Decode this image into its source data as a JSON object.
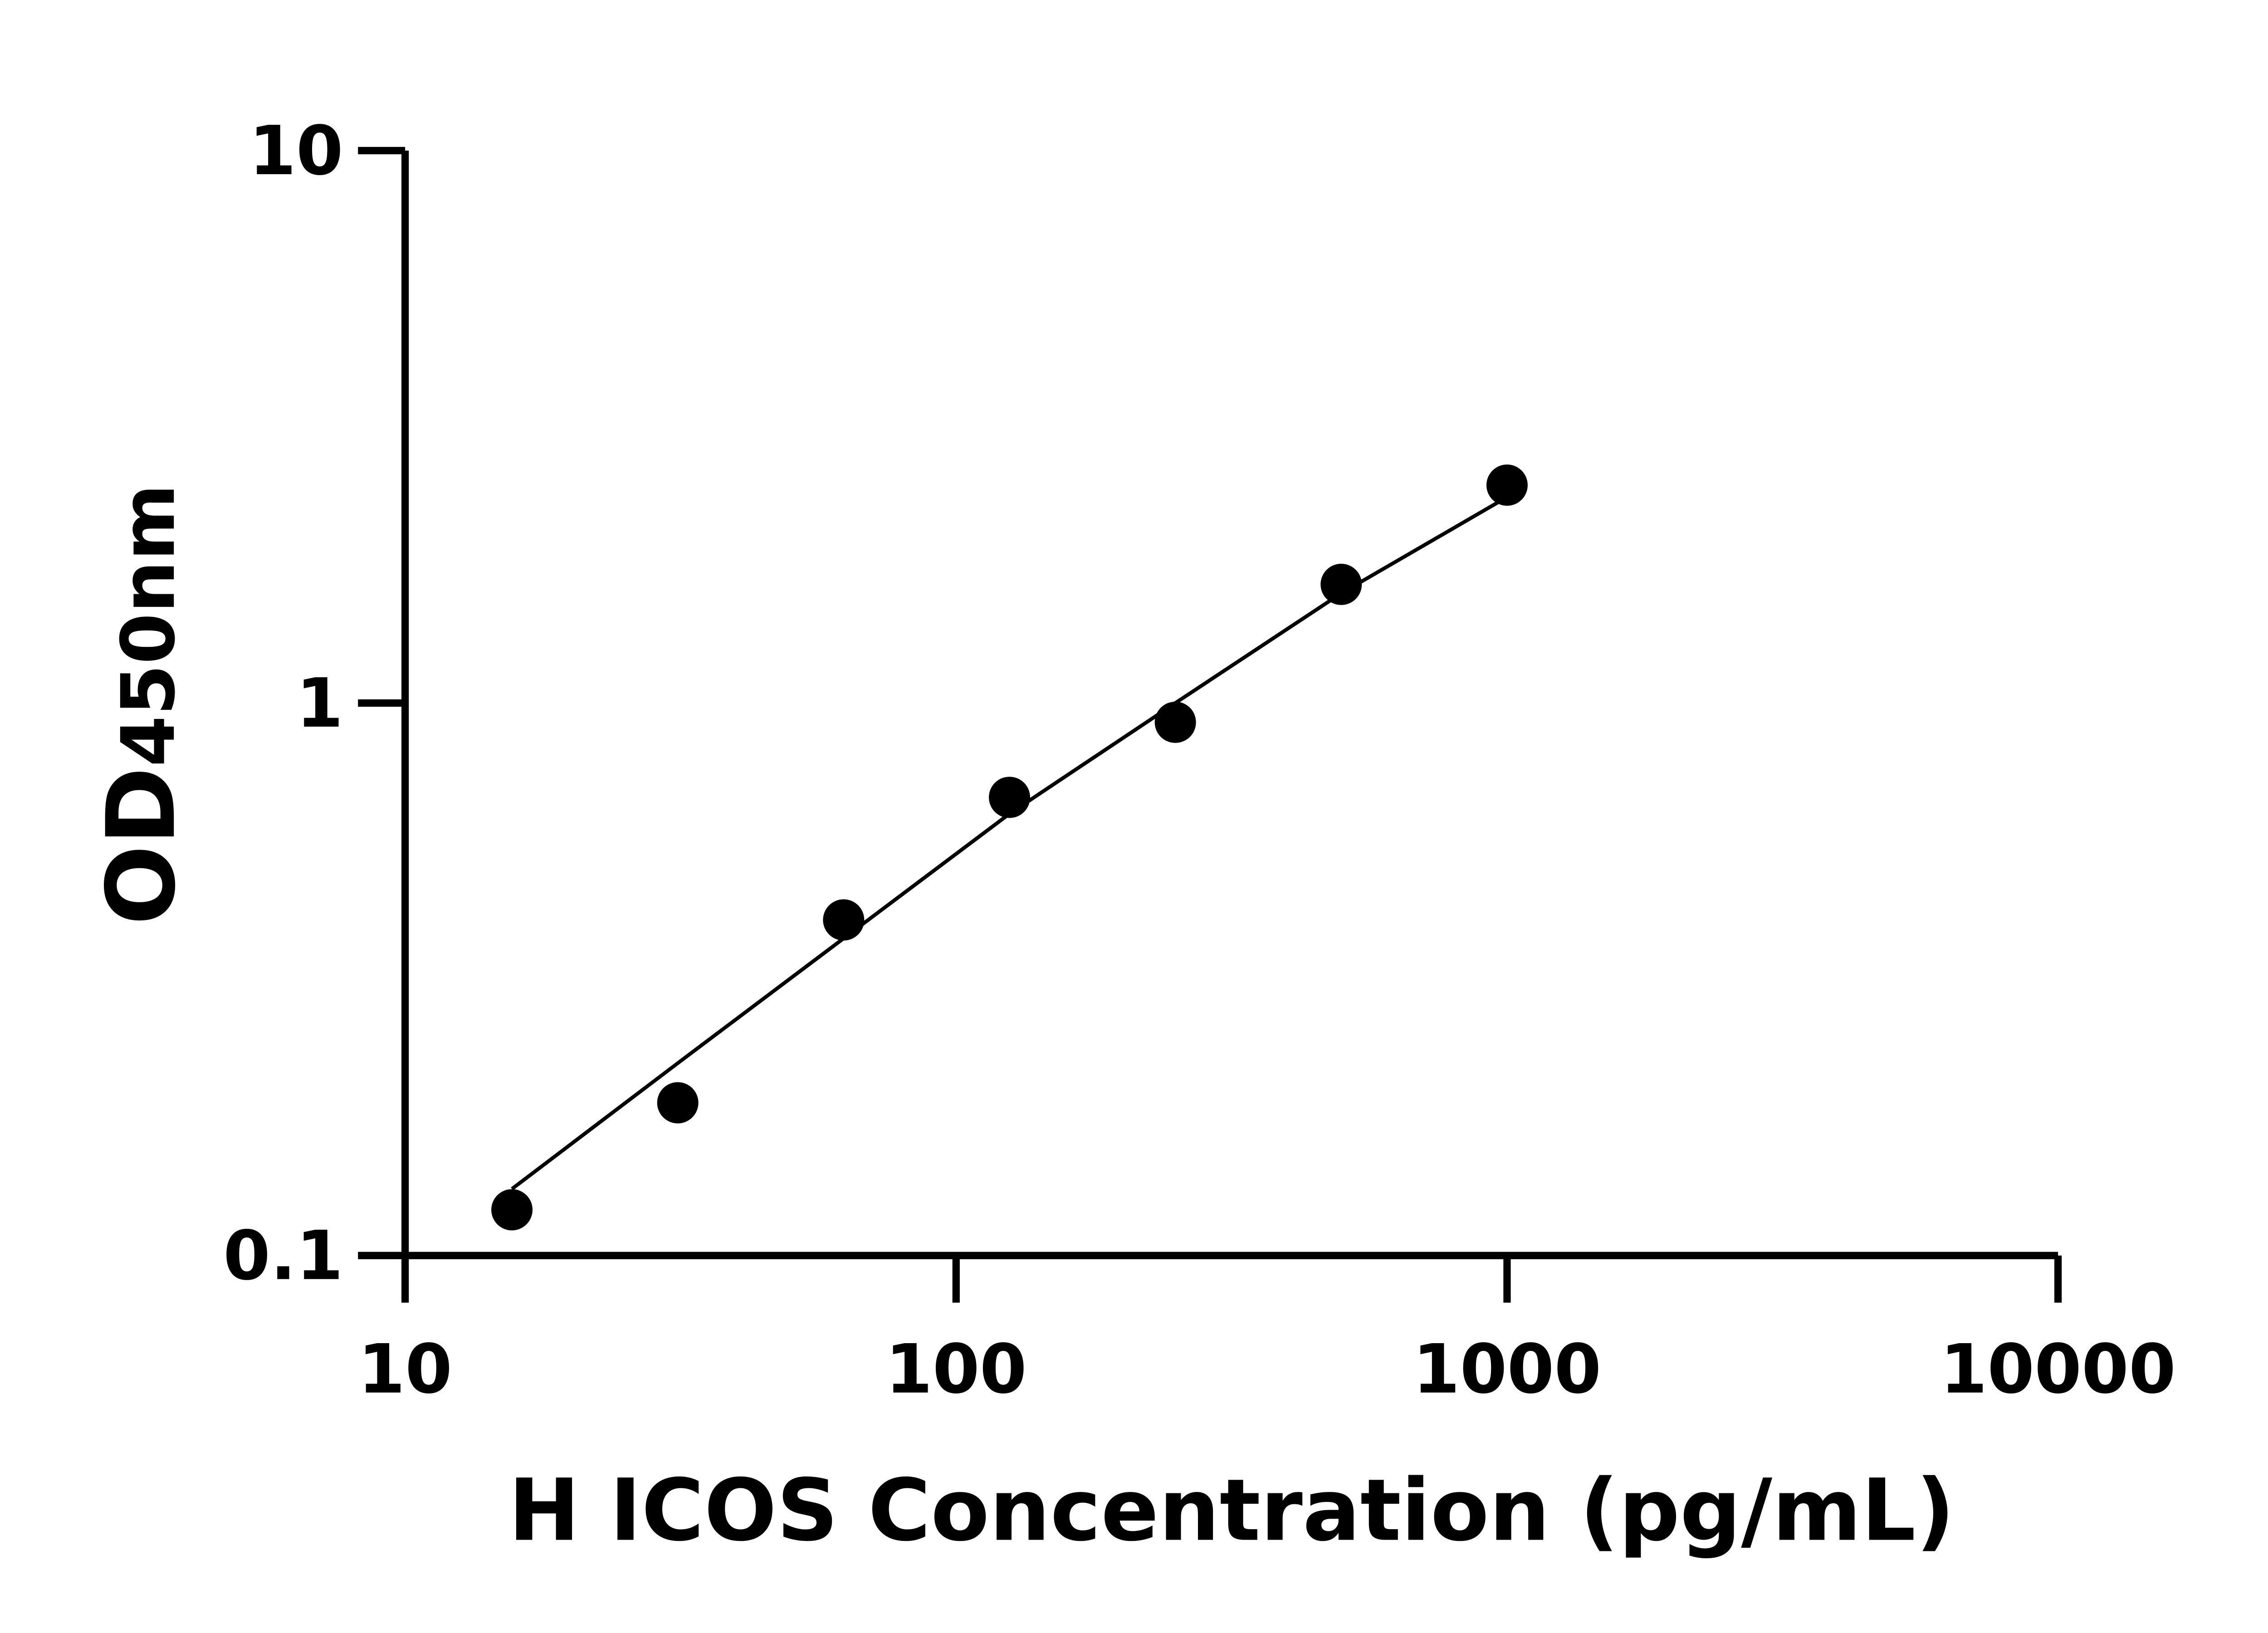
{
  "chart_data": {
    "type": "scatter",
    "title": "",
    "xlabel": "H ICOS Concentration (pg/mL)",
    "ylabel_main": "OD",
    "ylabel_sub": "450nm",
    "x_scale": "log",
    "y_scale": "log",
    "xlim": [
      10,
      10000
    ],
    "ylim": [
      0.1,
      10
    ],
    "x_ticks": [
      "10",
      "100",
      "1000",
      "10000"
    ],
    "y_ticks": [
      "0.1",
      "1",
      "10"
    ],
    "grid": false,
    "legend": "none",
    "colors": {
      "points": "#000000",
      "curve": "#000000",
      "axes": "#000000"
    },
    "series": [
      {
        "x": [
          15.625,
          31.25,
          62.5,
          125,
          250,
          500,
          1000
        ],
        "y": [
          0.121,
          0.189,
          0.405,
          0.675,
          0.923,
          1.64,
          2.48
        ]
      }
    ],
    "fit_curve": {
      "x": [
        15.625,
        31.25,
        62.5,
        125,
        250,
        500,
        1000
      ],
      "y": [
        0.132,
        0.223,
        0.375,
        0.63,
        1.0,
        1.58,
        2.36
      ]
    }
  }
}
